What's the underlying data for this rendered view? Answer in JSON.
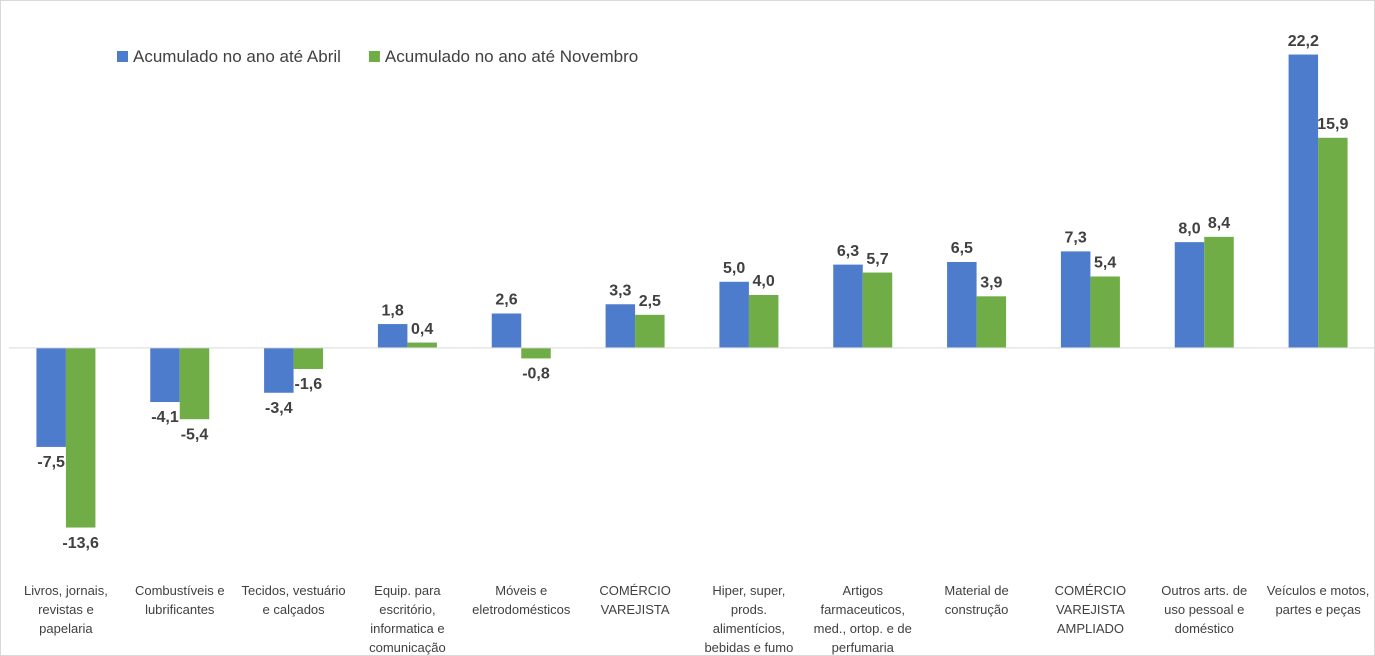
{
  "chart_data": {
    "type": "bar",
    "categories": [
      "Livros, jornais,\nrevistas e\npapelaria",
      "Combustíveis e\nlubrificantes",
      "Tecidos, vestuário\ne calçados",
      "Equip. para\nescritório,\ninformatica e\ncomunicação",
      "Móveis e\neletrodomésticos",
      "COMÉRCIO\nVAREJISTA",
      "Hiper, super,\nprods.\nalimentícios,\nbebidas e fumo",
      "Artigos\nfarmaceuticos,\nmed., ortop. e de\nperfumaria",
      "Material de\nconstrução",
      "COMÉRCIO\nVAREJISTA\nAMPLIADO",
      "Outros arts. de\nuso pessoal e\ndoméstico",
      "Veículos e motos,\npartes e peças"
    ],
    "series": [
      {
        "name": "Acumulado no ano até Abril",
        "color": "#4e7ccc",
        "values": [
          -7.5,
          -4.1,
          -3.4,
          1.8,
          2.6,
          3.3,
          5.0,
          6.3,
          6.5,
          7.3,
          8.0,
          22.2
        ],
        "value_labels": [
          "-7,5",
          "-4,1",
          "-3,4",
          "1,8",
          "2,6",
          "3,3",
          "5,0",
          "6,3",
          "6,5",
          "7,3",
          "8,0",
          "22,2"
        ]
      },
      {
        "name": "Acumulado no ano até Novembro",
        "color": "#70ad47",
        "values": [
          -13.6,
          -5.4,
          -1.6,
          0.4,
          -0.8,
          2.5,
          4.0,
          5.7,
          3.9,
          5.4,
          8.4,
          15.9
        ],
        "value_labels": [
          "-13,6",
          "-5,4",
          "-1,6",
          "0,4",
          "-0,8",
          "2,5",
          "4,0",
          "5,7",
          "3,9",
          "5,4",
          "8,4",
          "15,9"
        ]
      }
    ],
    "ylim": [
      -15.3,
      23.3
    ],
    "legend": "top-left"
  }
}
